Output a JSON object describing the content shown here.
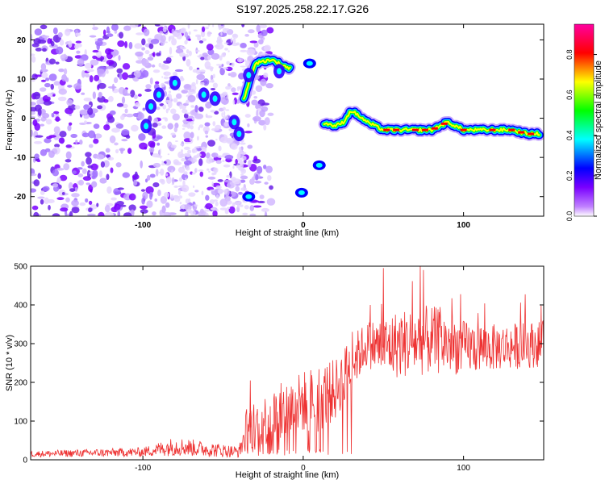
{
  "title": "S197.2025.258.22.17.G26",
  "chart_data": [
    {
      "type": "heatmap",
      "title": "S197.2025.258.22.17.G26",
      "xlabel": "Height of straight line (km)",
      "ylabel": "Frequency (Hz)",
      "xlim": [
        -170,
        150
      ],
      "ylim": [
        -25,
        24
      ],
      "xticks": [
        -100,
        0,
        100
      ],
      "xtick_labels": [
        "-100",
        "0",
        "100"
      ],
      "yticks": [
        -20,
        -10,
        0,
        10,
        20
      ],
      "ytick_labels": [
        "-20",
        "-10",
        "0",
        "10",
        "20"
      ],
      "colorbar": {
        "label": "Normalized spectral amplitude",
        "range": [
          0.0,
          0.95
        ],
        "ticks": [
          0.0,
          0.2,
          0.4,
          0.6,
          0.8
        ],
        "tick_labels": [
          "0.0",
          "0.2",
          "0.4",
          "0.6",
          "0.8"
        ],
        "colors": [
          "#ffffff",
          "#7a00ff",
          "#0000ff",
          "#00ffff",
          "#00ff00",
          "#ffff00",
          "#ff0000",
          "#ff00a0"
        ]
      },
      "ridge": {
        "description_points_x": [
          -40,
          -37,
          -30,
          -20,
          -10,
          -5,
          5,
          12,
          20,
          25,
          30,
          40,
          50,
          60,
          80,
          90,
          100,
          110,
          120,
          130,
          140,
          148
        ],
        "description_points_y": [
          0,
          5,
          14,
          15,
          13,
          12,
          12,
          -1,
          -2,
          -1,
          2,
          -1,
          -3,
          -3,
          -3,
          -1,
          -3,
          -3,
          -3,
          -3,
          -4,
          -4
        ],
        "side_features": [
          {
            "x": -34,
            "y": -20
          },
          {
            "x": -1,
            "y": -19
          },
          {
            "x": 10,
            "y": -12
          },
          {
            "x": 4,
            "y": 14
          }
        ]
      }
    },
    {
      "type": "line",
      "xlabel": "Height of straight line (km)",
      "ylabel": "SNR (10 * v/v)",
      "xlim": [
        -170,
        150
      ],
      "ylim": [
        0,
        500
      ],
      "xticks": [
        -100,
        0,
        100
      ],
      "xtick_labels": [
        "-100",
        "0",
        "100"
      ],
      "yticks": [
        0,
        100,
        200,
        300,
        400,
        500
      ],
      "ytick_labels": [
        "0",
        "100",
        "200",
        "300",
        "400",
        "500"
      ],
      "color": "#ee3333",
      "envelope_x": [
        -170,
        -100,
        -80,
        -40,
        -35,
        -20,
        -10,
        0,
        10,
        20,
        30,
        40,
        50,
        60,
        80,
        100,
        120,
        150
      ],
      "envelope_mean": [
        15,
        20,
        35,
        20,
        80,
        110,
        130,
        150,
        160,
        180,
        250,
        300,
        290,
        300,
        310,
        290,
        290,
        300
      ],
      "envelope_spread": [
        8,
        12,
        25,
        15,
        60,
        70,
        80,
        80,
        90,
        80,
        70,
        60,
        80,
        90,
        90,
        70,
        60,
        60
      ],
      "peaks": [
        {
          "x": 50,
          "y": 495
        },
        {
          "x": 73,
          "y": 500
        },
        {
          "x": 75,
          "y": 490
        },
        {
          "x": -33,
          "y": 205
        },
        {
          "x": 15,
          "y": 225
        }
      ]
    }
  ]
}
